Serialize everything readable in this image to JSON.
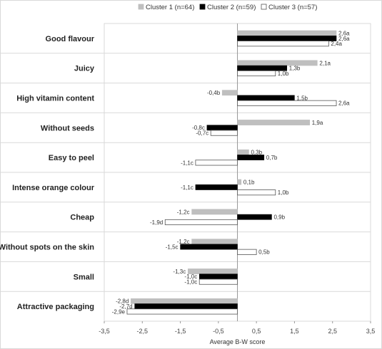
{
  "chart_data": {
    "type": "bar",
    "orientation": "horizontal",
    "xlabel": "Average B-W score",
    "xlim": [
      -3.5,
      3.5
    ],
    "x_ticks": [
      -3.5,
      -2.5,
      -1.5,
      -0.5,
      0.5,
      1.5,
      2.5,
      3.5
    ],
    "x_tick_labels": [
      "-3,5",
      "-2,5",
      "-1,5",
      "-0,5",
      "0,5",
      "1,5",
      "2,5",
      "3,5"
    ],
    "grid": "horizontal separators between categories",
    "legend_position": "top-right",
    "categories": [
      "Good flavour",
      "Juicy",
      "High vitamin content",
      "Without seeds",
      "Easy to peel",
      "Intense orange colour",
      "Cheap",
      "Without spots on the skin",
      "Small",
      "Attractive packaging"
    ],
    "series": [
      {
        "name": "Cluster 1 (n=64)",
        "color": "#bfbfbf",
        "values": [
          2.6,
          2.1,
          -0.4,
          1.9,
          0.3,
          0.1,
          -1.2,
          -1.2,
          -1.3,
          -2.8
        ],
        "labels": [
          "2,6a",
          "2,1a",
          "-0,4b",
          "1,9a",
          "0,3b",
          "0,1b",
          "-1,2c",
          "-1,2c",
          "-1,3c",
          "-2,8d"
        ]
      },
      {
        "name": "Cluster 2 (n=59)",
        "color": "#000000",
        "values": [
          2.6,
          1.3,
          1.5,
          -0.8,
          0.7,
          -1.1,
          0.9,
          -1.5,
          -1.0,
          -2.7
        ],
        "labels": [
          "2,6a",
          "1,3b",
          "1,5b",
          "-0,8c",
          "0,7b",
          "-1,1c",
          "0,9b",
          "-1,5c",
          "-1,0c",
          "-2,7d"
        ]
      },
      {
        "name": "Cluster 3 (n=57)",
        "color": "#ffffff",
        "values": [
          2.4,
          1.0,
          2.6,
          -0.7,
          -1.1,
          1.0,
          -1.9,
          0.5,
          -1.0,
          -2.9
        ],
        "labels": [
          "2,4a",
          "1,0b",
          "2,6a",
          "-0,7c",
          "-1,1c",
          "1,0b",
          "-1,9d",
          "0,5b",
          "-1,0c",
          "-2,9e"
        ]
      }
    ]
  }
}
